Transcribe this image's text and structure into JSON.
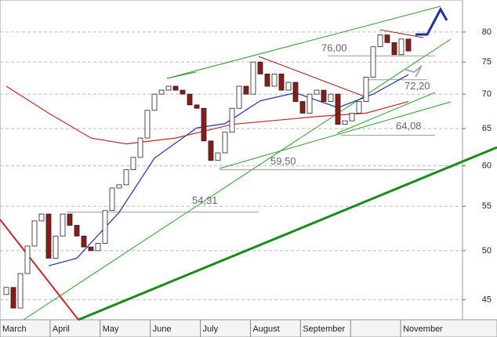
{
  "chart_data": {
    "type": "candlestick",
    "categories": [
      "March",
      "April",
      "May",
      "June",
      "July",
      "August",
      "September",
      null,
      "November"
    ],
    "open": [
      45.5,
      46.2,
      44.2,
      47.6,
      50.5,
      53.3,
      54.1,
      49.2,
      51.6,
      54.1,
      52.8,
      51.6,
      50.4,
      50.0,
      50.8,
      54.5,
      57.2,
      57.6,
      59.5,
      61.1,
      63.7,
      67.6,
      70.0,
      70.6,
      71.2,
      70.6,
      70.0,
      68.4,
      67.9,
      63.3,
      60.7,
      61.7,
      64.5,
      67.9,
      71.2,
      70.0,
      75.0,
      73.1,
      71.2,
      73.1,
      70.6,
      71.8,
      68.9,
      67.2,
      70.0,
      70.6,
      68.9,
      70.0,
      65.6,
      66.1,
      67.2,
      68.9,
      72.6,
      77.5,
      79.5,
      78.2,
      76.2,
      78.8
    ],
    "close": [
      46.2,
      44.2,
      47.6,
      50.5,
      53.3,
      54.1,
      49.2,
      51.6,
      54.1,
      52.8,
      51.6,
      50.4,
      50.0,
      50.8,
      54.5,
      57.2,
      57.6,
      59.5,
      61.1,
      63.7,
      67.6,
      70.0,
      70.6,
      71.2,
      70.6,
      70.0,
      68.4,
      67.9,
      63.3,
      60.7,
      61.7,
      64.5,
      67.9,
      71.2,
      70.0,
      75.0,
      73.1,
      71.2,
      73.1,
      70.6,
      71.8,
      68.9,
      67.2,
      70.0,
      70.6,
      68.9,
      70.0,
      65.6,
      66.1,
      67.2,
      68.9,
      72.6,
      77.5,
      79.5,
      78.2,
      76.2,
      78.8,
      76.8
    ],
    "up_color": "#ffffff",
    "down_color": "#8b1a1a",
    "series": [
      {
        "color": "#1f2fa8",
        "x": [
          6,
          10,
          16,
          21,
          27,
          31,
          36,
          41,
          47,
          52,
          57
        ],
        "values": [
          48.4,
          49.2,
          54.3,
          61.0,
          65.1,
          65.7,
          69.0,
          70.2,
          68.0,
          70.0,
          73.0
        ]
      },
      {
        "color": "#c0282d",
        "x": [
          0,
          6,
          12,
          17,
          24,
          32,
          44,
          51,
          57
        ],
        "values": [
          71.2,
          67.2,
          63.7,
          62.9,
          63.7,
          65.6,
          66.7,
          67.2,
          68.9
        ]
      }
    ],
    "levels": [
      {
        "value": 76.0,
        "label": "76,00"
      },
      {
        "value": 72.2,
        "label": "72,20"
      },
      {
        "value": 64.08,
        "label": "64,08"
      },
      {
        "value": 59.5,
        "label": "59,50"
      },
      {
        "value": 54.31,
        "label": "54,31"
      }
    ],
    "ylim": [
      43.1,
      85.7
    ],
    "yticks": [
      45,
      50,
      55,
      60,
      65,
      70,
      75,
      80
    ],
    "log_y": true,
    "grid": true
  }
}
